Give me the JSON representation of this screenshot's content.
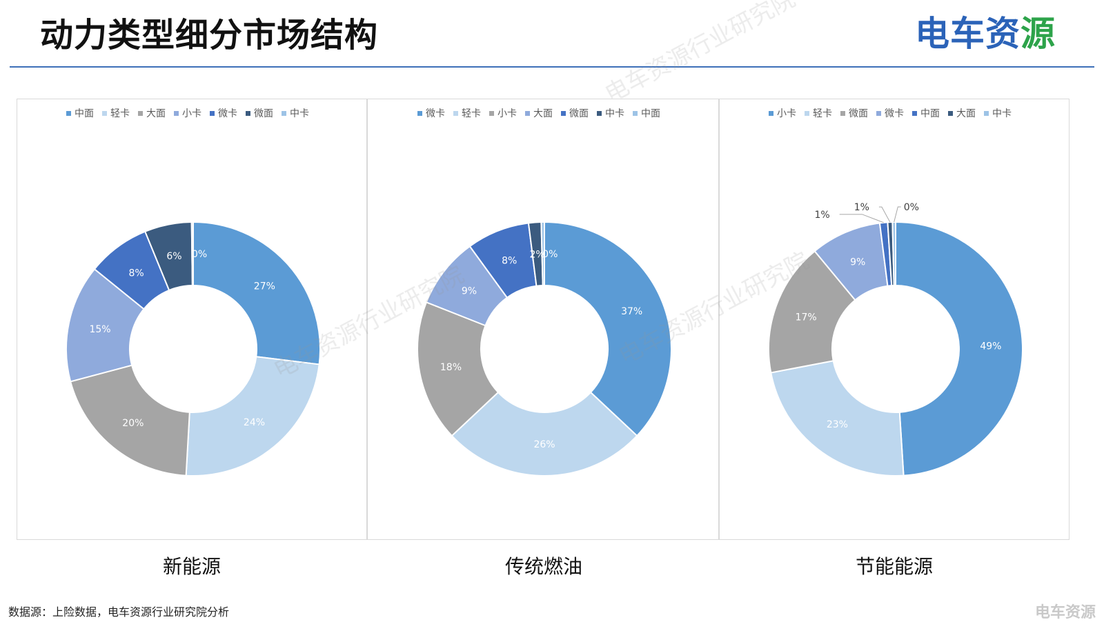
{
  "header": {
    "title": "动力类型细分市场结构",
    "brand_main": "电车资",
    "brand_accent": "源"
  },
  "footer": {
    "source": "数据源：上险数据，电车资源行业研究院分析",
    "corner_mark": "电车资源"
  },
  "watermark_text": "电车资源行业研究院",
  "colors": {
    "blue": "#5b9bd5",
    "light_blue": "#bdd7ee",
    "gray": "#a5a5a5",
    "periwinkle": "#8faadc",
    "royal_blue": "#4472c4",
    "dark_slate": "#3b5b7f",
    "pale_blue": "#9dc3e6"
  },
  "chart_data": [
    {
      "type": "pie",
      "title": "新能源",
      "legend_position": "top",
      "slices": [
        {
          "label": "中面",
          "value": 27,
          "display": "27%",
          "color": "#5b9bd5"
        },
        {
          "label": "轻卡",
          "value": 24,
          "display": "24%",
          "color": "#bdd7ee"
        },
        {
          "label": "大面",
          "value": 20,
          "display": "20%",
          "color": "#a5a5a5"
        },
        {
          "label": "小卡",
          "value": 15,
          "display": "15%",
          "color": "#8faadc"
        },
        {
          "label": "微卡",
          "value": 8,
          "display": "8%",
          "color": "#4472c4"
        },
        {
          "label": "微面",
          "value": 6,
          "display": "6%",
          "color": "#3b5b7f"
        },
        {
          "label": "中卡",
          "value": 0.2,
          "display": "0%",
          "color": "#9dc3e6"
        }
      ]
    },
    {
      "type": "pie",
      "title": "传统燃油",
      "legend_position": "top",
      "slices": [
        {
          "label": "微卡",
          "value": 37,
          "display": "37%",
          "color": "#5b9bd5"
        },
        {
          "label": "轻卡",
          "value": 26,
          "display": "26%",
          "color": "#bdd7ee"
        },
        {
          "label": "小卡",
          "value": 18,
          "display": "18%",
          "color": "#a5a5a5"
        },
        {
          "label": "大面",
          "value": 9,
          "display": "9%",
          "color": "#8faadc"
        },
        {
          "label": "微面",
          "value": 8,
          "display": "8%",
          "color": "#4472c4"
        },
        {
          "label": "中卡",
          "value": 1.6,
          "display": "2%",
          "color": "#3b5b7f"
        },
        {
          "label": "中面",
          "value": 0.4,
          "display": "0%",
          "color": "#9dc3e6"
        }
      ]
    },
    {
      "type": "pie",
      "title": "节能能源",
      "legend_position": "top",
      "slices": [
        {
          "label": "小卡",
          "value": 49,
          "display": "49%",
          "color": "#5b9bd5"
        },
        {
          "label": "轻卡",
          "value": 23,
          "display": "23%",
          "color": "#bdd7ee"
        },
        {
          "label": "微面",
          "value": 17,
          "display": "17%",
          "color": "#a5a5a5"
        },
        {
          "label": "微卡",
          "value": 9,
          "display": "9%",
          "color": "#8faadc"
        },
        {
          "label": "中面",
          "value": 1,
          "display": "1%",
          "color": "#4472c4"
        },
        {
          "label": "大面",
          "value": 0.6,
          "display": "1%",
          "color": "#3b5b7f"
        },
        {
          "label": "中卡",
          "value": 0.4,
          "display": "0%",
          "color": "#9dc3e6"
        }
      ]
    }
  ]
}
